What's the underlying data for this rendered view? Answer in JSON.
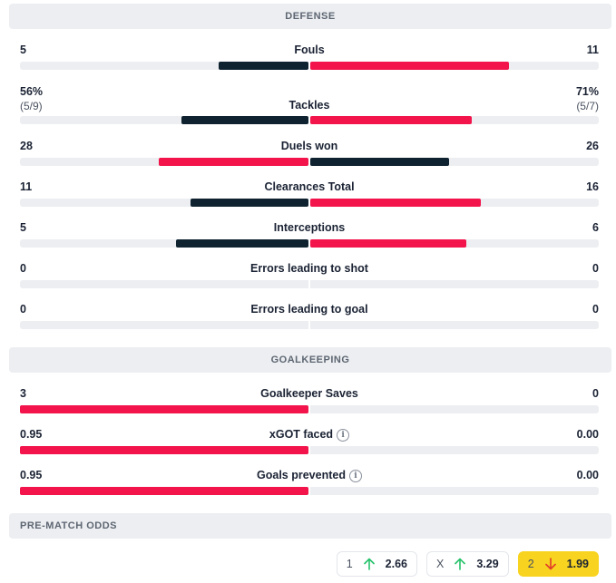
{
  "colors": {
    "home": "#0f2230",
    "away": "#f2144b",
    "track": "#eceef1",
    "odds_highlight": "#f8d31f",
    "arrow_up": "#26c26a",
    "arrow_down": "#e23b2b"
  },
  "defense": {
    "title": "DEFENSE",
    "stats": [
      {
        "label": "Fouls",
        "home": "5",
        "away": "11",
        "home_sub": "",
        "away_sub": "",
        "home_frac": 0.31,
        "away_frac": 0.69,
        "home_color": "home",
        "away_color": "away"
      },
      {
        "label": "Tackles",
        "home": "56%",
        "away": "71%",
        "home_sub": "(5/9)",
        "away_sub": "(5/7)",
        "home_frac": 0.44,
        "away_frac": 0.56,
        "home_color": "home",
        "away_color": "away"
      },
      {
        "label": "Duels won",
        "home": "28",
        "away": "26",
        "home_sub": "",
        "away_sub": "",
        "home_frac": 0.52,
        "away_frac": 0.48,
        "home_color": "away",
        "away_color": "home"
      },
      {
        "label": "Clearances Total",
        "home": "11",
        "away": "16",
        "home_sub": "",
        "away_sub": "",
        "home_frac": 0.41,
        "away_frac": 0.59,
        "home_color": "home",
        "away_color": "away"
      },
      {
        "label": "Interceptions",
        "home": "5",
        "away": "6",
        "home_sub": "",
        "away_sub": "",
        "home_frac": 0.46,
        "away_frac": 0.54,
        "home_color": "home",
        "away_color": "away"
      },
      {
        "label": "Errors leading to shot",
        "home": "0",
        "away": "0",
        "home_sub": "",
        "away_sub": "",
        "home_frac": 0,
        "away_frac": 0,
        "home_color": "home",
        "away_color": "away"
      },
      {
        "label": "Errors leading to goal",
        "home": "0",
        "away": "0",
        "home_sub": "",
        "away_sub": "",
        "home_frac": 0,
        "away_frac": 0,
        "home_color": "home",
        "away_color": "away"
      }
    ]
  },
  "goalkeeping": {
    "title": "GOALKEEPING",
    "stats": [
      {
        "label": "Goalkeeper Saves",
        "home": "3",
        "away": "0",
        "info": false,
        "home_frac": 1.0,
        "away_frac": 0
      },
      {
        "label": "xGOT faced",
        "home": "0.95",
        "away": "0.00",
        "info": true,
        "home_frac": 1.0,
        "away_frac": 0
      },
      {
        "label": "Goals prevented",
        "home": "0.95",
        "away": "0.00",
        "info": true,
        "home_frac": 1.0,
        "away_frac": 0
      }
    ]
  },
  "odds": {
    "title": "PRE-MATCH ODDS",
    "items": [
      {
        "key": "1",
        "value": "2.66",
        "trend": "up",
        "highlight": false
      },
      {
        "key": "X",
        "value": "3.29",
        "trend": "up",
        "highlight": false
      },
      {
        "key": "2",
        "value": "1.99",
        "trend": "down",
        "highlight": true
      }
    ]
  },
  "info_icon_glyph": "i"
}
